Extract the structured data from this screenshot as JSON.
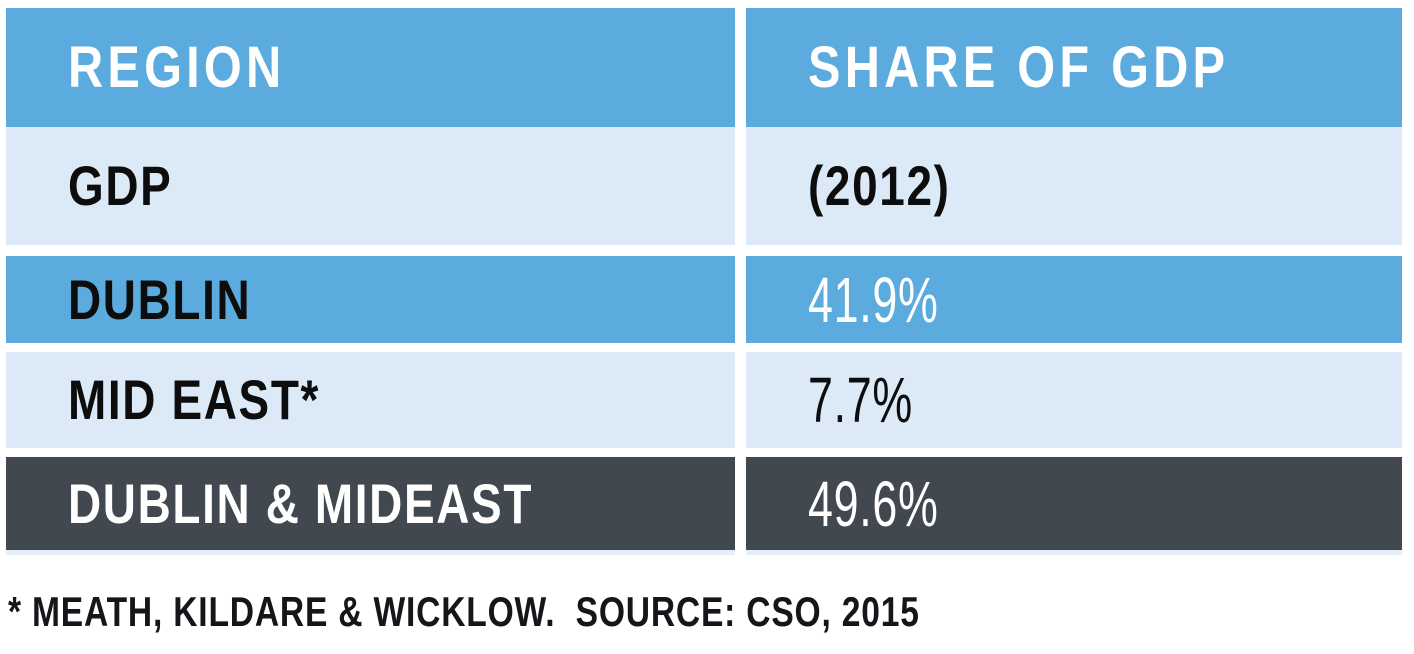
{
  "chart_data": {
    "type": "table",
    "title": "",
    "header": {
      "region": "REGION",
      "share": "SHARE OF GDP"
    },
    "header_line2": {
      "region": "GDP",
      "share": "(2012)"
    },
    "columns": [
      "REGION GDP",
      "SHARE OF GDP (2012)"
    ],
    "rows": [
      {
        "region": "DUBLIN",
        "share": "41.9%",
        "value": 41.9
      },
      {
        "region": "MID EAST*",
        "share": "7.7%",
        "value": 7.7
      },
      {
        "region": "DUBLIN & MIDEAST",
        "share": "49.6%",
        "value": 49.6
      }
    ],
    "footnote": "* MEATH, KILDARE & WICKLOW.  SOURCE: CSO, 2015",
    "legend_position": "none",
    "grid": false
  },
  "colors": {
    "accent_blue": "#5babde",
    "light_blue": "#dce9f6",
    "dark_slate": "#414850",
    "underline_pale": "#e6eefa",
    "text_white": "#ffffff",
    "text_black": "#0d0d0d"
  }
}
